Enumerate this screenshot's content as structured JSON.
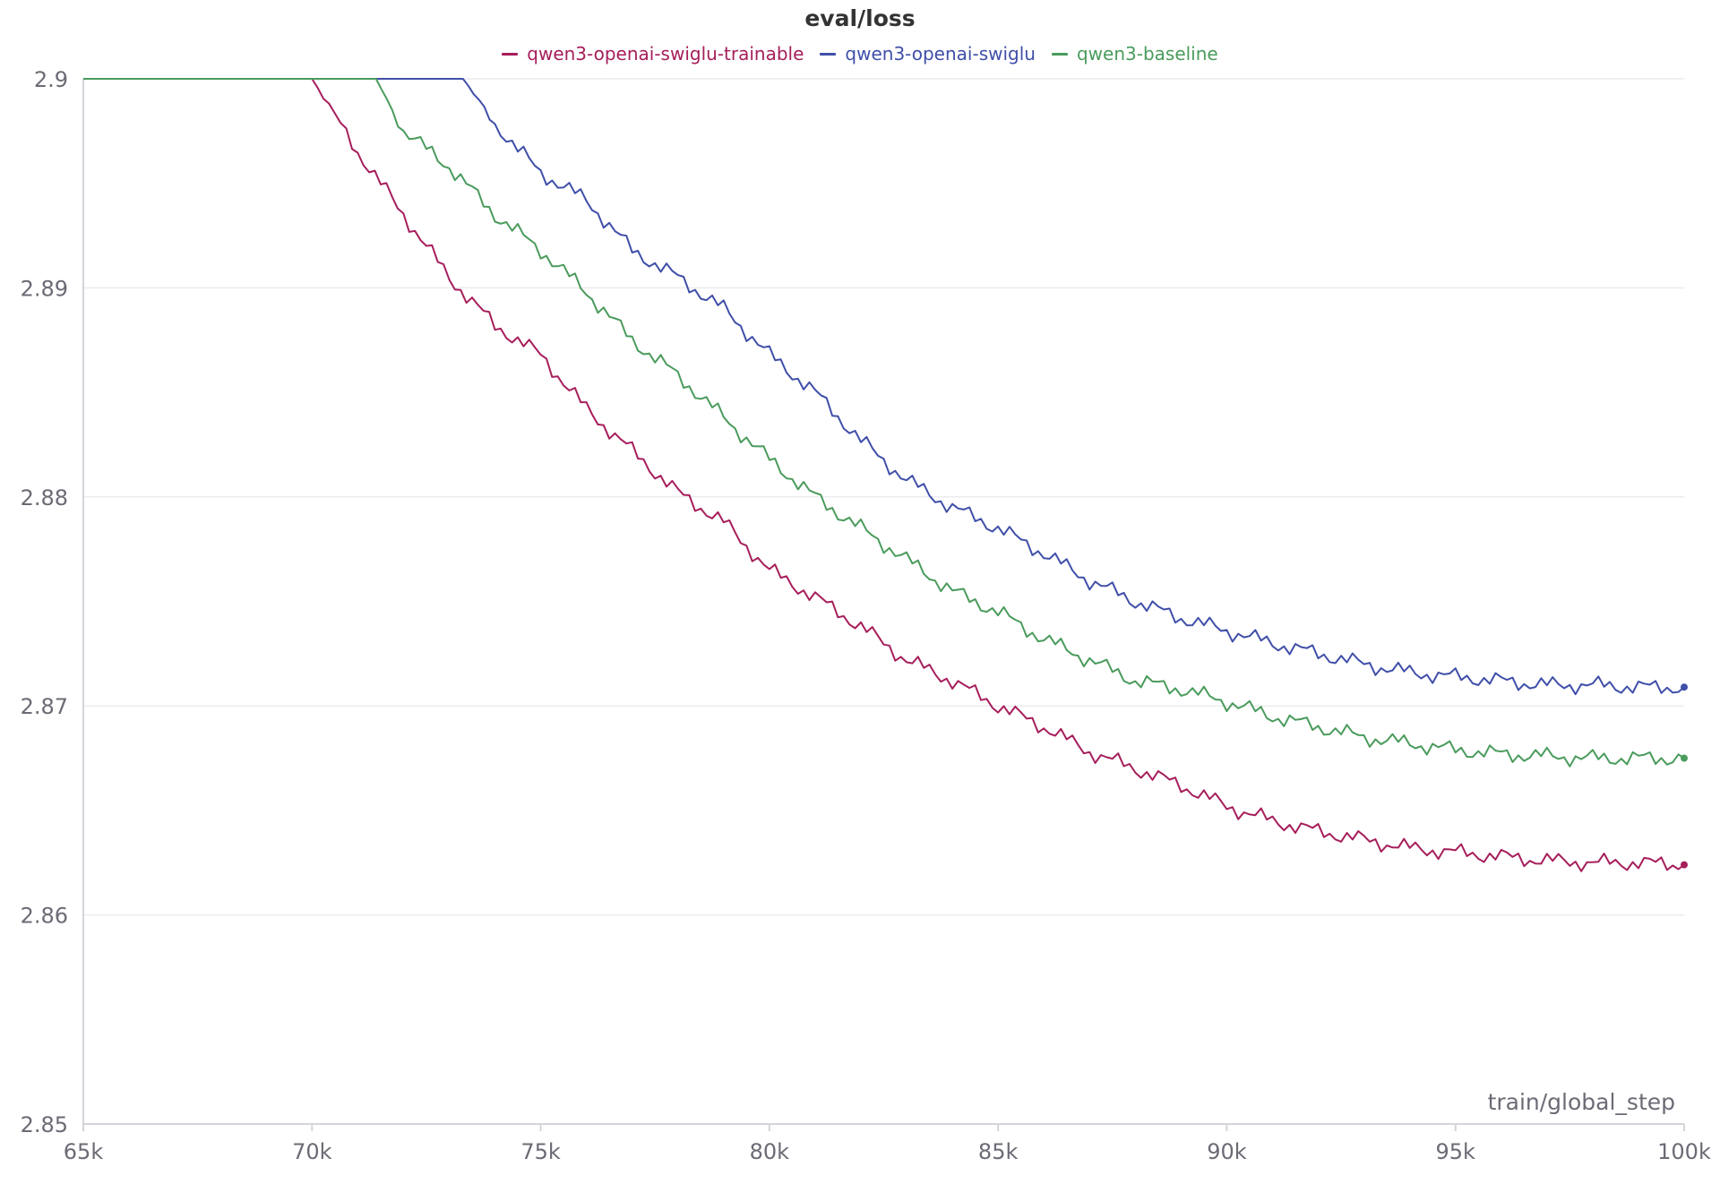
{
  "chart_data": {
    "type": "line",
    "title": "eval/loss",
    "xlabel": "train/global_step",
    "ylabel": "",
    "xlim": [
      65000,
      100000
    ],
    "ylim": [
      2.85,
      2.9
    ],
    "x_ticks": [
      "65k",
      "70k",
      "75k",
      "80k",
      "85k",
      "90k",
      "95k",
      "100k"
    ],
    "x_tick_values": [
      65000,
      70000,
      75000,
      80000,
      85000,
      90000,
      95000,
      100000
    ],
    "y_ticks": [
      "2.85",
      "2.86",
      "2.87",
      "2.88",
      "2.89",
      "2.9"
    ],
    "y_tick_values": [
      2.85,
      2.86,
      2.87,
      2.88,
      2.89,
      2.9
    ],
    "grid": true,
    "legend_position": "top-center",
    "series": [
      {
        "name": "qwen3-openai-swiglu-trainable",
        "color": "#a61e5b",
        "points": [
          [
            65000,
            2.9
          ],
          [
            70000,
            2.9
          ],
          [
            71000,
            2.8965
          ],
          [
            72000,
            2.8935
          ],
          [
            73000,
            2.8905
          ],
          [
            74000,
            2.8882
          ],
          [
            75000,
            2.8868
          ],
          [
            76000,
            2.8842
          ],
          [
            77000,
            2.8822
          ],
          [
            78000,
            2.8802
          ],
          [
            79000,
            2.8788
          ],
          [
            80000,
            2.8765
          ],
          [
            81000,
            2.8752
          ],
          [
            82000,
            2.8738
          ],
          [
            83000,
            2.8722
          ],
          [
            84000,
            2.8712
          ],
          [
            85000,
            2.87
          ],
          [
            86000,
            2.869
          ],
          [
            87000,
            2.8678
          ],
          [
            88000,
            2.867
          ],
          [
            89000,
            2.8662
          ],
          [
            90000,
            2.8652
          ],
          [
            91000,
            2.8645
          ],
          [
            92000,
            2.864
          ],
          [
            93000,
            2.8636
          ],
          [
            94000,
            2.8632
          ],
          [
            95000,
            2.863
          ],
          [
            96000,
            2.8628
          ],
          [
            97000,
            2.8626
          ],
          [
            98000,
            2.8625
          ],
          [
            99000,
            2.8625
          ],
          [
            100000,
            2.8624
          ]
        ]
      },
      {
        "name": "qwen3-openai-swiglu",
        "color": "#3f4fa8",
        "points": [
          [
            65000,
            2.9
          ],
          [
            73300,
            2.9
          ],
          [
            74000,
            2.8978
          ],
          [
            75000,
            2.8955
          ],
          [
            76000,
            2.8942
          ],
          [
            77000,
            2.8918
          ],
          [
            78000,
            2.8905
          ],
          [
            79000,
            2.889
          ],
          [
            80000,
            2.8868
          ],
          [
            81000,
            2.885
          ],
          [
            82000,
            2.8827
          ],
          [
            83000,
            2.8808
          ],
          [
            84000,
            2.8795
          ],
          [
            85000,
            2.8785
          ],
          [
            86000,
            2.8773
          ],
          [
            87000,
            2.876
          ],
          [
            88000,
            2.875
          ],
          [
            89000,
            2.8742
          ],
          [
            90000,
            2.8736
          ],
          [
            91000,
            2.873
          ],
          [
            92000,
            2.8725
          ],
          [
            93000,
            2.872
          ],
          [
            94000,
            2.8716
          ],
          [
            95000,
            2.8714
          ],
          [
            96000,
            2.8712
          ],
          [
            97000,
            2.871
          ],
          [
            98000,
            2.871
          ],
          [
            99000,
            2.8709
          ],
          [
            100000,
            2.8709
          ]
        ]
      },
      {
        "name": "qwen3-baseline",
        "color": "#4a9b5c",
        "points": [
          [
            65000,
            2.9
          ],
          [
            71400,
            2.9
          ],
          [
            72000,
            2.8975
          ],
          [
            73000,
            2.8958
          ],
          [
            74000,
            2.8935
          ],
          [
            75000,
            2.8918
          ],
          [
            76000,
            2.8898
          ],
          [
            77000,
            2.8875
          ],
          [
            78000,
            2.8858
          ],
          [
            79000,
            2.8838
          ],
          [
            80000,
            2.8818
          ],
          [
            81000,
            2.88
          ],
          [
            82000,
            2.8785
          ],
          [
            83000,
            2.877
          ],
          [
            84000,
            2.8755
          ],
          [
            85000,
            2.8745
          ],
          [
            86000,
            2.8732
          ],
          [
            87000,
            2.8722
          ],
          [
            88000,
            2.8712
          ],
          [
            89000,
            2.8708
          ],
          [
            90000,
            2.8702
          ],
          [
            91000,
            2.8695
          ],
          [
            92000,
            2.869
          ],
          [
            93000,
            2.8685
          ],
          [
            94000,
            2.8682
          ],
          [
            95000,
            2.8679
          ],
          [
            96000,
            2.8677
          ],
          [
            97000,
            2.8676
          ],
          [
            98000,
            2.8675
          ],
          [
            99000,
            2.8675
          ],
          [
            100000,
            2.8675
          ]
        ]
      }
    ]
  }
}
